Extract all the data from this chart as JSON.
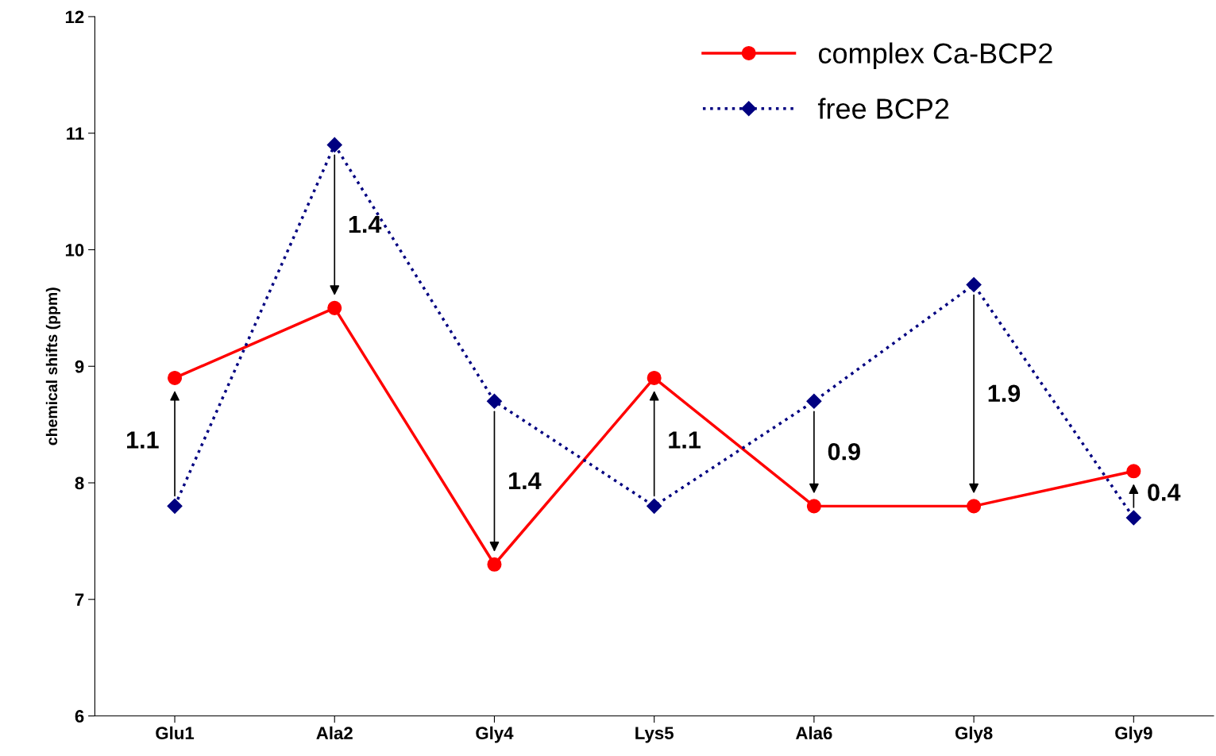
{
  "chart_data": {
    "type": "line",
    "ylabel": "chemical shifts (ppm)",
    "categories": [
      "Glu1",
      "Ala2",
      "Gly4",
      "Lys5",
      "Ala6",
      "Gly8",
      "Gly9"
    ],
    "series": [
      {
        "name": "complex Ca-BCP2",
        "color": "#ff0000",
        "values": [
          8.9,
          9.5,
          7.3,
          8.9,
          7.8,
          7.8,
          8.1
        ],
        "marker": "circle",
        "line_style": "solid"
      },
      {
        "name": "free BCP2",
        "color": "#000080",
        "values": [
          7.8,
          10.9,
          8.7,
          7.8,
          8.7,
          9.7,
          7.7
        ],
        "marker": "diamond",
        "line_style": "dotted"
      }
    ],
    "ylim": [
      6,
      12
    ],
    "yticks": [
      6,
      7,
      8,
      9,
      10,
      11,
      12
    ],
    "grid": false,
    "legend": "top right",
    "annotations": [
      "1.1",
      "1.4",
      "1.4",
      "1.1",
      "0.9",
      "1.9",
      "0.4"
    ]
  }
}
